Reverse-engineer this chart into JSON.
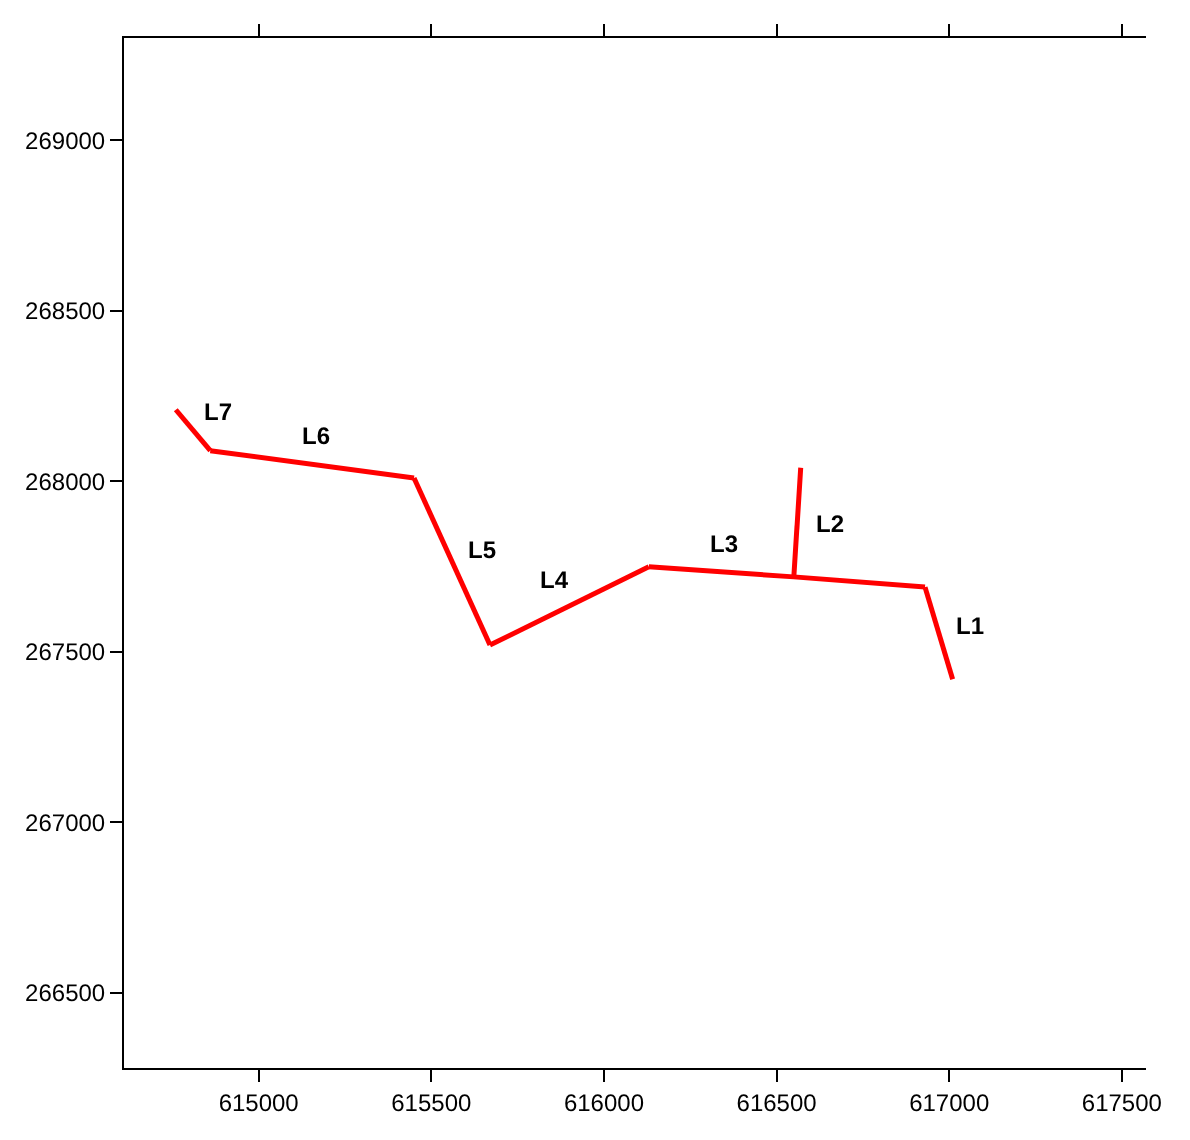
{
  "chart_data": {
    "type": "line",
    "marker": "none",
    "line_style": "solid",
    "xlim": [
      614610,
      617570
    ],
    "ylim": [
      266280,
      269300
    ],
    "xticks": [
      615000,
      615500,
      616000,
      616500,
      617000,
      617500
    ],
    "yticks": [
      266500,
      267000,
      267500,
      268000,
      268500,
      269000
    ],
    "series": [
      {
        "name": "L1",
        "color": "#ff0000",
        "x": [
          616930,
          617010
        ],
        "values": [
          267690,
          267420
        ]
      },
      {
        "name": "L2",
        "color": "#ff0000",
        "x": [
          616550,
          616570
        ],
        "values": [
          267720,
          268040
        ]
      },
      {
        "name": "L3",
        "color": "#ff0000",
        "x": [
          616130,
          616550,
          616930
        ],
        "values": [
          267750,
          267720,
          267690
        ]
      },
      {
        "name": "L4",
        "color": "#ff0000",
        "x": [
          615670,
          616130
        ],
        "values": [
          267520,
          267750
        ]
      },
      {
        "name": "L5",
        "color": "#ff0000",
        "x": [
          615450,
          615670
        ],
        "values": [
          268010,
          267520
        ]
      },
      {
        "name": "L6",
        "color": "#ff0000",
        "x": [
          614860,
          615450
        ],
        "values": [
          268090,
          268010
        ]
      },
      {
        "name": "L7",
        "color": "#ff0000",
        "x": [
          614760,
          614860
        ],
        "values": [
          268210,
          268090
        ]
      }
    ]
  }
}
